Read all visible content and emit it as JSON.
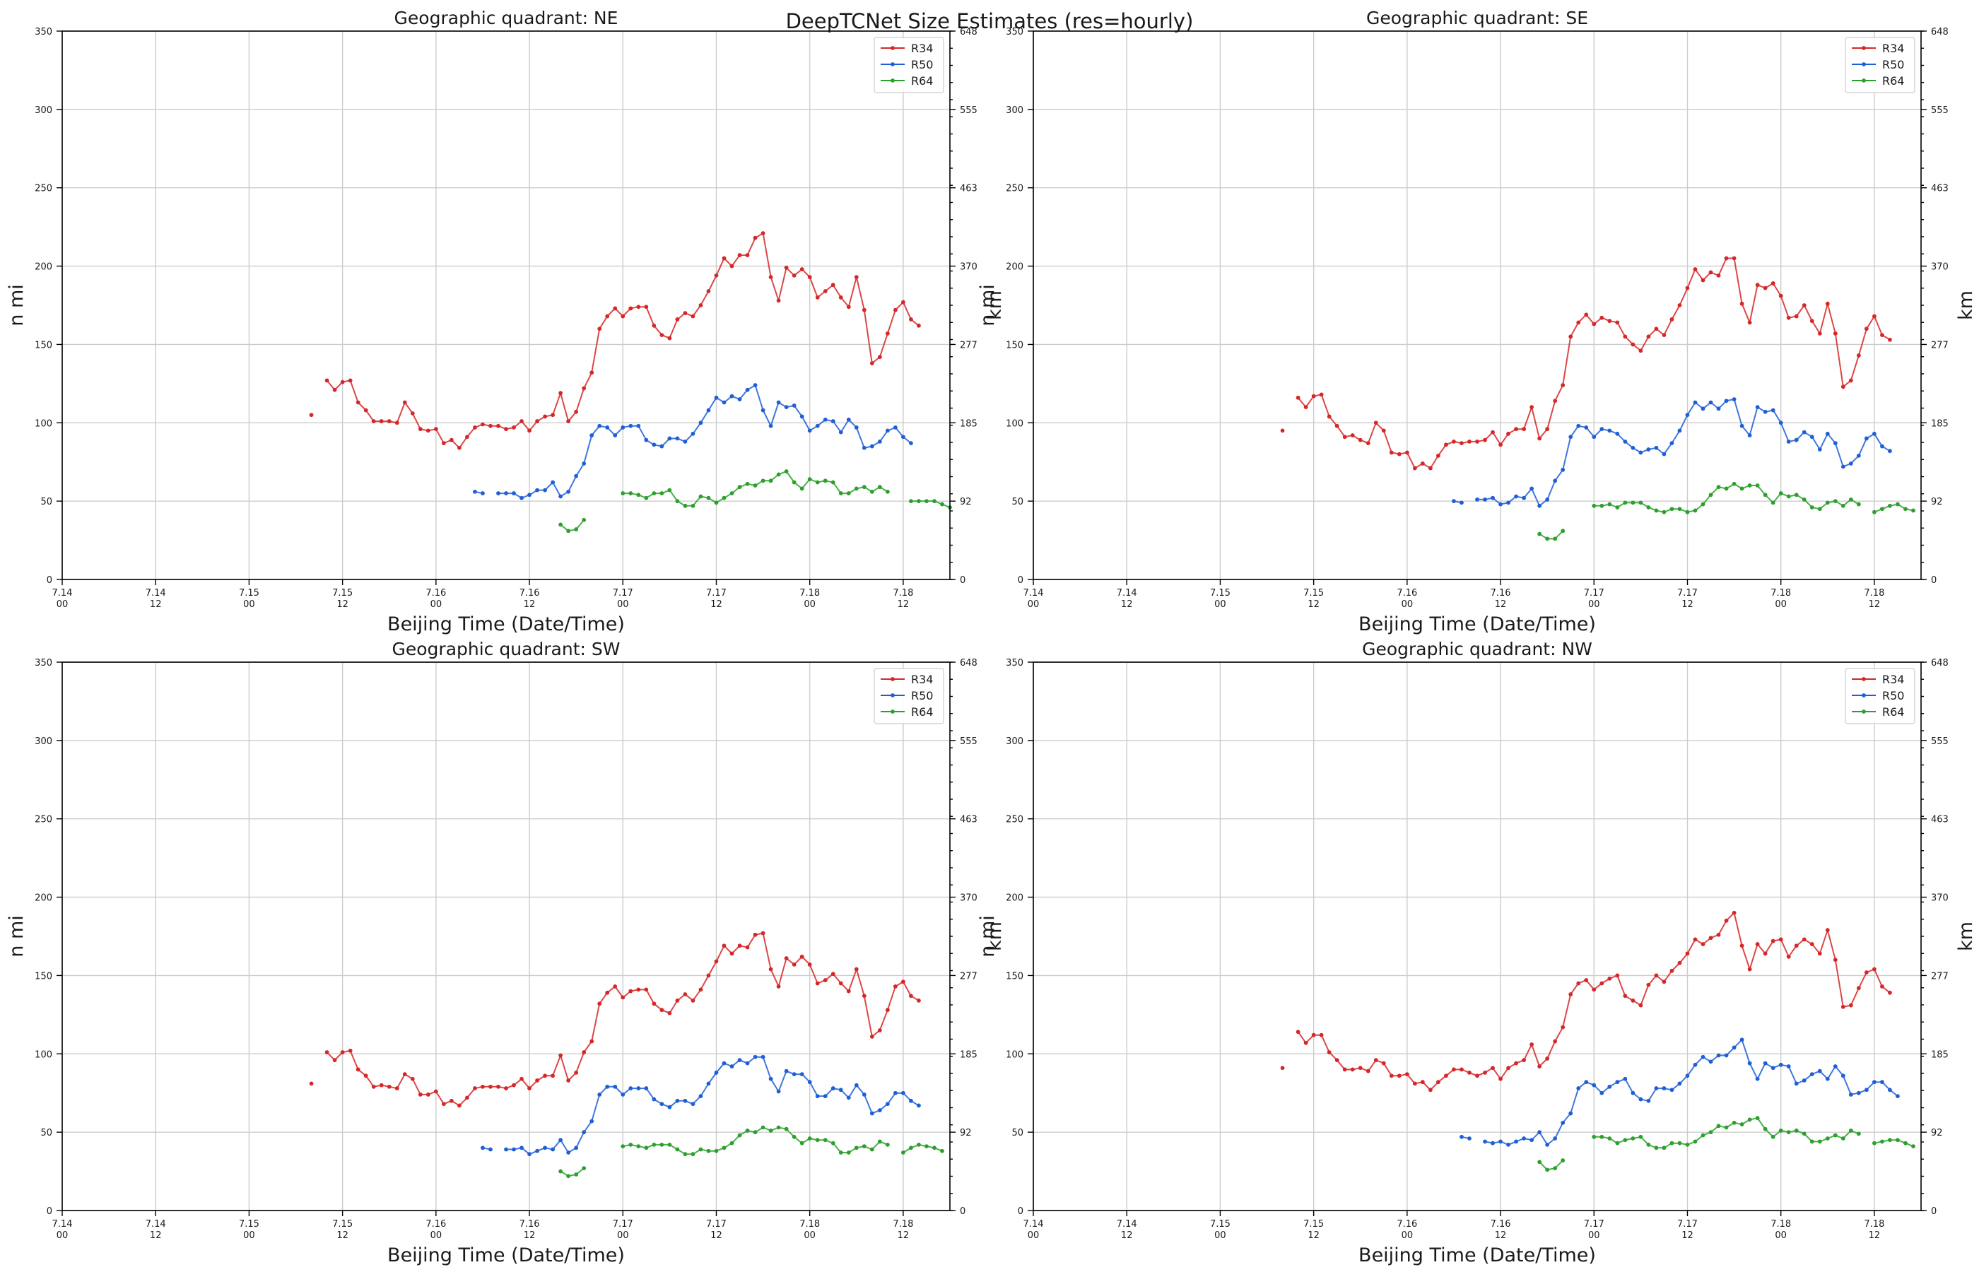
{
  "figure": {
    "suptitle": "DeepTCNet Size Estimates (res=hourly)",
    "colors": {
      "R34": "#d62728",
      "R50": "#1f5fd6",
      "R64": "#2ca02c"
    }
  },
  "chart_data": [
    {
      "type": "line",
      "title": "Geographic quadrant: NE",
      "xlabel": "Beijing Time (Date/Time)",
      "ylabel": "n mi",
      "y2label": "km",
      "x_unit": "hours since 7.14 00",
      "xlim": [
        0,
        114
      ],
      "ylim": [
        0,
        350
      ],
      "yticks": [
        0,
        50,
        100,
        150,
        200,
        250,
        300,
        350
      ],
      "y2ticks": [
        "0",
        "92",
        "185",
        "277",
        "370",
        "463",
        "555",
        "648"
      ],
      "xticks": [
        {
          "x": 0,
          "date": "7.14",
          "hour": "00"
        },
        {
          "x": 12,
          "date": "7.14",
          "hour": "12"
        },
        {
          "x": 24,
          "date": "7.15",
          "hour": "00"
        },
        {
          "x": 36,
          "date": "7.15",
          "hour": "12"
        },
        {
          "x": 48,
          "date": "7.16",
          "hour": "00"
        },
        {
          "x": 60,
          "date": "7.16",
          "hour": "12"
        },
        {
          "x": 72,
          "date": "7.17",
          "hour": "00"
        },
        {
          "x": 84,
          "date": "7.17",
          "hour": "12"
        },
        {
          "x": 96,
          "date": "7.18",
          "hour": "00"
        },
        {
          "x": 108,
          "date": "7.18",
          "hour": "12"
        }
      ],
      "grid": true,
      "legend": "upper-right",
      "series": [
        {
          "name": "R34",
          "x0": 32,
          "values": [
            105,
            null,
            127,
            121,
            126,
            127,
            113,
            108,
            101,
            101,
            101,
            100,
            113,
            106,
            96,
            95,
            96,
            87,
            89,
            84,
            91,
            97,
            99,
            98,
            98,
            96,
            97,
            101,
            95,
            101,
            104,
            105,
            119,
            101,
            107,
            122,
            132,
            160,
            168,
            173,
            168,
            173,
            174,
            174,
            162,
            156,
            154,
            166,
            170,
            168,
            175,
            184,
            194,
            205,
            200,
            207,
            207,
            218,
            221,
            193,
            178,
            199,
            194,
            198,
            193,
            180,
            184,
            188,
            180,
            174,
            193,
            172,
            138,
            142,
            157,
            172,
            177,
            166,
            162
          ]
        },
        {
          "name": "R50",
          "x0": 53,
          "values": [
            56,
            55,
            null,
            55,
            55,
            55,
            52,
            54,
            57,
            57,
            62,
            53,
            56,
            66,
            74,
            92,
            98,
            97,
            92,
            97,
            98,
            98,
            89,
            86,
            85,
            90,
            90,
            88,
            93,
            100,
            108,
            116,
            113,
            117,
            115,
            121,
            124,
            108,
            98,
            113,
            110,
            111,
            104,
            95,
            98,
            102,
            101,
            94,
            102,
            97,
            84,
            85,
            88,
            95,
            97,
            91,
            87
          ]
        },
        {
          "name": "R64",
          "x0": 64,
          "values": [
            35,
            31,
            32,
            38,
            null,
            null,
            null,
            null,
            55,
            55,
            54,
            52,
            55,
            55,
            57,
            50,
            47,
            47,
            53,
            52,
            49,
            52,
            55,
            59,
            61,
            60,
            63,
            63,
            67,
            69,
            62,
            58,
            64,
            62,
            63,
            62,
            55,
            55,
            58,
            59,
            56,
            59,
            56,
            null,
            null,
            50,
            50,
            50,
            50,
            48,
            46
          ]
        }
      ]
    },
    {
      "type": "line",
      "title": "Geographic quadrant: SE",
      "xlabel": "Beijing Time (Date/Time)",
      "ylabel": "n mi",
      "y2label": "km",
      "x_unit": "hours since 7.14 00",
      "xlim": [
        0,
        114
      ],
      "ylim": [
        0,
        350
      ],
      "yticks": [
        0,
        50,
        100,
        150,
        200,
        250,
        300,
        350
      ],
      "y2ticks": [
        "0",
        "92",
        "185",
        "277",
        "370",
        "463",
        "555",
        "648"
      ],
      "xticks": [
        {
          "x": 0,
          "date": "7.14",
          "hour": "00"
        },
        {
          "x": 12,
          "date": "7.14",
          "hour": "12"
        },
        {
          "x": 24,
          "date": "7.15",
          "hour": "00"
        },
        {
          "x": 36,
          "date": "7.15",
          "hour": "12"
        },
        {
          "x": 48,
          "date": "7.16",
          "hour": "00"
        },
        {
          "x": 60,
          "date": "7.16",
          "hour": "12"
        },
        {
          "x": 72,
          "date": "7.17",
          "hour": "00"
        },
        {
          "x": 84,
          "date": "7.17",
          "hour": "12"
        },
        {
          "x": 96,
          "date": "7.18",
          "hour": "00"
        },
        {
          "x": 108,
          "date": "7.18",
          "hour": "12"
        }
      ],
      "grid": true,
      "legend": "upper-right",
      "series": [
        {
          "name": "R34",
          "x0": 32,
          "values": [
            95,
            null,
            116,
            110,
            117,
            118,
            104,
            98,
            91,
            92,
            89,
            87,
            100,
            95,
            81,
            80,
            81,
            71,
            74,
            71,
            79,
            86,
            88,
            87,
            88,
            88,
            89,
            94,
            86,
            93,
            96,
            96,
            110,
            90,
            96,
            114,
            124,
            155,
            164,
            169,
            163,
            167,
            165,
            164,
            155,
            150,
            146,
            155,
            160,
            156,
            166,
            175,
            186,
            198,
            191,
            196,
            194,
            205,
            205,
            176,
            164,
            188,
            186,
            189,
            181,
            167,
            168,
            175,
            165,
            157,
            176,
            157,
            123,
            127,
            143,
            160,
            168,
            156,
            153
          ]
        },
        {
          "name": "R50",
          "x0": 54,
          "values": [
            50,
            49,
            null,
            51,
            51,
            52,
            48,
            49,
            53,
            52,
            58,
            47,
            51,
            63,
            70,
            91,
            98,
            97,
            91,
            96,
            95,
            93,
            88,
            84,
            81,
            83,
            84,
            80,
            87,
            95,
            105,
            113,
            109,
            113,
            109,
            114,
            115,
            98,
            92,
            110,
            107,
            108,
            100,
            88,
            89,
            94,
            91,
            83,
            93,
            87,
            72,
            74,
            79,
            90,
            93,
            85,
            82
          ]
        },
        {
          "name": "R64",
          "x0": 65,
          "values": [
            29,
            26,
            26,
            31,
            null,
            null,
            null,
            47,
            47,
            48,
            46,
            49,
            49,
            49,
            46,
            44,
            43,
            45,
            45,
            43,
            44,
            48,
            54,
            59,
            58,
            61,
            58,
            60,
            60,
            54,
            49,
            55,
            53,
            54,
            51,
            46,
            45,
            49,
            50,
            47,
            51,
            48,
            null,
            43,
            45,
            47,
            48,
            45,
            44
          ]
        }
      ]
    },
    {
      "type": "line",
      "title": "Geographic quadrant: SW",
      "xlabel": "Beijing Time (Date/Time)",
      "ylabel": "n mi",
      "y2label": "km",
      "x_unit": "hours since 7.14 00",
      "xlim": [
        0,
        114
      ],
      "ylim": [
        0,
        350
      ],
      "yticks": [
        0,
        50,
        100,
        150,
        200,
        250,
        300,
        350
      ],
      "y2ticks": [
        "0",
        "92",
        "185",
        "277",
        "370",
        "463",
        "555",
        "648"
      ],
      "xticks": [
        {
          "x": 0,
          "date": "7.14",
          "hour": "00"
        },
        {
          "x": 12,
          "date": "7.14",
          "hour": "12"
        },
        {
          "x": 24,
          "date": "7.15",
          "hour": "00"
        },
        {
          "x": 36,
          "date": "7.15",
          "hour": "12"
        },
        {
          "x": 48,
          "date": "7.16",
          "hour": "00"
        },
        {
          "x": 60,
          "date": "7.16",
          "hour": "12"
        },
        {
          "x": 72,
          "date": "7.17",
          "hour": "00"
        },
        {
          "x": 84,
          "date": "7.17",
          "hour": "12"
        },
        {
          "x": 96,
          "date": "7.18",
          "hour": "00"
        },
        {
          "x": 108,
          "date": "7.18",
          "hour": "12"
        }
      ],
      "grid": true,
      "legend": "upper-right",
      "series": [
        {
          "name": "R34",
          "x0": 32,
          "values": [
            81,
            null,
            101,
            96,
            101,
            102,
            90,
            86,
            79,
            80,
            79,
            78,
            87,
            84,
            74,
            74,
            76,
            68,
            70,
            67,
            72,
            78,
            79,
            79,
            79,
            78,
            80,
            84,
            78,
            83,
            86,
            86,
            99,
            83,
            88,
            101,
            108,
            132,
            139,
            143,
            136,
            140,
            141,
            141,
            132,
            128,
            126,
            134,
            138,
            134,
            141,
            150,
            159,
            169,
            164,
            169,
            168,
            176,
            177,
            154,
            143,
            161,
            157,
            162,
            157,
            145,
            147,
            151,
            145,
            140,
            154,
            137,
            111,
            115,
            128,
            143,
            146,
            137,
            134
          ]
        },
        {
          "name": "R50",
          "x0": 54,
          "values": [
            40,
            39,
            null,
            39,
            39,
            40,
            36,
            38,
            40,
            39,
            45,
            37,
            40,
            50,
            57,
            74,
            79,
            79,
            74,
            78,
            78,
            78,
            71,
            68,
            66,
            70,
            70,
            68,
            73,
            81,
            88,
            94,
            92,
            96,
            94,
            98,
            98,
            84,
            76,
            89,
            87,
            87,
            82,
            73,
            73,
            78,
            77,
            72,
            80,
            74,
            62,
            64,
            68,
            75,
            75,
            70,
            67
          ]
        },
        {
          "name": "R64",
          "x0": 64,
          "values": [
            25,
            22,
            23,
            27,
            null,
            null,
            null,
            null,
            41,
            42,
            41,
            40,
            42,
            42,
            42,
            39,
            36,
            36,
            39,
            38,
            38,
            40,
            43,
            48,
            51,
            50,
            53,
            51,
            53,
            52,
            47,
            43,
            46,
            45,
            45,
            43,
            37,
            37,
            40,
            41,
            39,
            44,
            42,
            null,
            37,
            40,
            42,
            41,
            40,
            38
          ]
        }
      ]
    },
    {
      "type": "line",
      "title": "Geographic quadrant: NW",
      "xlabel": "Beijing Time (Date/Time)",
      "ylabel": "n mi",
      "y2label": "km",
      "x_unit": "hours since 7.14 00",
      "xlim": [
        0,
        114
      ],
      "ylim": [
        0,
        350
      ],
      "yticks": [
        0,
        50,
        100,
        150,
        200,
        250,
        300,
        350
      ],
      "y2ticks": [
        "0",
        "92",
        "185",
        "277",
        "370",
        "463",
        "555",
        "648"
      ],
      "xticks": [
        {
          "x": 0,
          "date": "7.14",
          "hour": "00"
        },
        {
          "x": 12,
          "date": "7.14",
          "hour": "12"
        },
        {
          "x": 24,
          "date": "7.15",
          "hour": "00"
        },
        {
          "x": 36,
          "date": "7.15",
          "hour": "12"
        },
        {
          "x": 48,
          "date": "7.16",
          "hour": "00"
        },
        {
          "x": 60,
          "date": "7.16",
          "hour": "12"
        },
        {
          "x": 72,
          "date": "7.17",
          "hour": "00"
        },
        {
          "x": 84,
          "date": "7.17",
          "hour": "12"
        },
        {
          "x": 96,
          "date": "7.18",
          "hour": "00"
        },
        {
          "x": 108,
          "date": "7.18",
          "hour": "12"
        }
      ],
      "grid": true,
      "legend": "upper-right",
      "series": [
        {
          "name": "R34",
          "x0": 32,
          "values": [
            91,
            null,
            114,
            107,
            112,
            112,
            101,
            96,
            90,
            90,
            91,
            89,
            96,
            94,
            86,
            86,
            87,
            81,
            82,
            77,
            82,
            86,
            90,
            90,
            88,
            86,
            88,
            91,
            84,
            91,
            94,
            96,
            106,
            92,
            97,
            108,
            117,
            138,
            145,
            147,
            141,
            145,
            148,
            150,
            137,
            134,
            131,
            144,
            150,
            146,
            153,
            158,
            164,
            173,
            170,
            174,
            176,
            185,
            190,
            169,
            154,
            170,
            164,
            172,
            173,
            162,
            169,
            173,
            170,
            164,
            179,
            160,
            130,
            131,
            142,
            152,
            154,
            143,
            139
          ]
        },
        {
          "name": "R50",
          "x0": 55,
          "values": [
            47,
            46,
            null,
            44,
            43,
            44,
            42,
            44,
            46,
            45,
            50,
            42,
            46,
            56,
            62,
            78,
            82,
            80,
            75,
            79,
            82,
            84,
            75,
            71,
            70,
            78,
            78,
            77,
            81,
            86,
            93,
            98,
            95,
            99,
            99,
            104,
            109,
            94,
            84,
            94,
            91,
            93,
            92,
            81,
            83,
            87,
            89,
            84,
            92,
            86,
            74,
            75,
            77,
            82,
            82,
            77,
            73
          ]
        },
        {
          "name": "R64",
          "x0": 65,
          "values": [
            31,
            26,
            27,
            32,
            null,
            null,
            null,
            47,
            47,
            46,
            43,
            45,
            46,
            47,
            42,
            40,
            40,
            43,
            43,
            42,
            44,
            48,
            50,
            54,
            53,
            56,
            55,
            58,
            59,
            52,
            47,
            51,
            50,
            51,
            49,
            44,
            44,
            46,
            48,
            46,
            51,
            49,
            null,
            43,
            44,
            45,
            45,
            43,
            41
          ]
        }
      ]
    }
  ]
}
